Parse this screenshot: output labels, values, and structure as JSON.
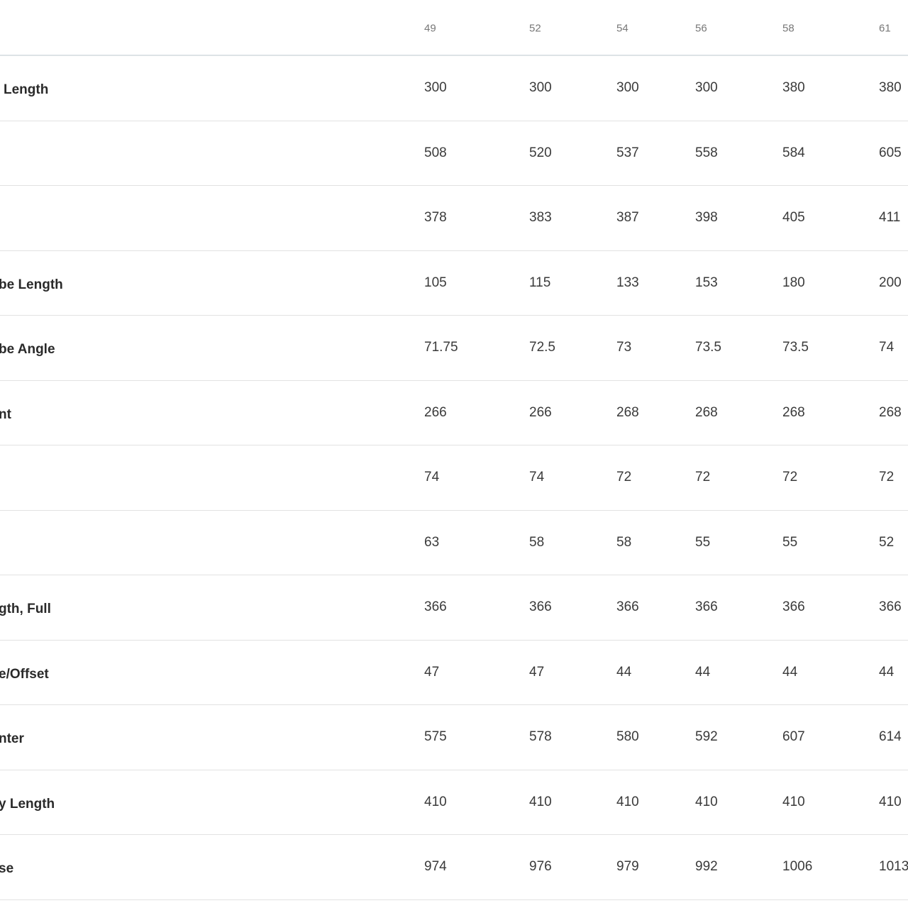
{
  "table": {
    "header": [
      49,
      52,
      54,
      56,
      58,
      61
    ],
    "rows": [
      {
        "label": "Length",
        "values": [
          300,
          300,
          300,
          300,
          380,
          380
        ]
      },
      {
        "values": [
          508,
          520,
          537,
          558,
          584,
          605
        ]
      },
      {
        "values": [
          378,
          383,
          387,
          398,
          405,
          411
        ]
      },
      {
        "label": "be Length",
        "values": [
          105,
          115,
          133,
          153,
          180,
          200
        ]
      },
      {
        "label": "be Angle",
        "values": [
          71.75,
          72.5,
          73,
          73.5,
          73.5,
          74
        ]
      },
      {
        "label": "nt",
        "values": [
          266,
          266,
          268,
          268,
          268,
          268
        ]
      },
      {
        "values": [
          74,
          74,
          72,
          72,
          72,
          72
        ]
      },
      {
        "values": [
          63,
          58,
          58,
          55,
          55,
          52
        ]
      },
      {
        "label": "gth, Full",
        "values": [
          366,
          366,
          366,
          366,
          366,
          366
        ]
      },
      {
        "label": "e/Offset",
        "values": [
          47,
          47,
          44,
          44,
          44,
          44
        ]
      },
      {
        "label": "nter",
        "values": [
          575,
          578,
          580,
          592,
          607,
          614
        ]
      },
      {
        "label": "y Length",
        "values": [
          410,
          410,
          410,
          410,
          410,
          410
        ]
      },
      {
        "label": "se",
        "values": [
          974,
          976,
          979,
          992,
          1006,
          1013
        ]
      }
    ]
  }
}
